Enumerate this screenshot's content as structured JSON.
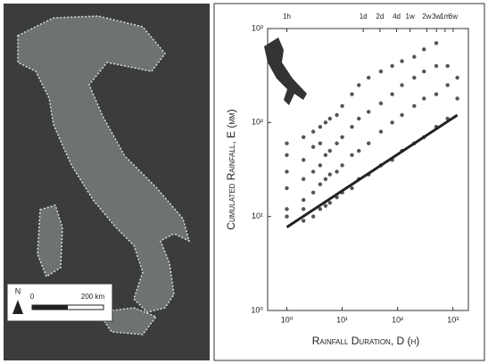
{
  "map": {
    "north": "N",
    "scale_labels": [
      "0",
      "200 km"
    ]
  },
  "chart_data": {
    "type": "scatter",
    "x_label": "Rainfall Duration, D (h)",
    "y_label": "Cumulated Rainfall, E (mm)",
    "xscale": "log",
    "yscale": "log",
    "xlim": [
      0.45,
      1900
    ],
    "ylim": [
      1,
      1000
    ],
    "xticks": [
      {
        "value": 1,
        "label": "10⁰"
      },
      {
        "value": 10,
        "label": "10¹"
      },
      {
        "value": 100,
        "label": "10²"
      },
      {
        "value": 1000,
        "label": "10³"
      }
    ],
    "yticks": [
      {
        "value": 1,
        "label": "10⁰"
      },
      {
        "value": 10,
        "label": "10¹"
      },
      {
        "value": 100,
        "label": "10²"
      },
      {
        "value": 1000,
        "label": "10³"
      }
    ],
    "x2ticks": [
      {
        "value": 1,
        "label": "1h"
      },
      {
        "value": 24,
        "label": "1d"
      },
      {
        "value": 48,
        "label": "2d"
      },
      {
        "value": 96,
        "label": "4d"
      },
      {
        "value": 168,
        "label": "1w"
      },
      {
        "value": 336,
        "label": "2w"
      },
      {
        "value": 504,
        "label": "3w"
      },
      {
        "value": 720,
        "label": "1m"
      },
      {
        "value": 1008,
        "label": "6w"
      }
    ],
    "series": [
      {
        "mode": "points",
        "color": "#555555",
        "x": [
          1,
          1,
          1,
          1,
          1,
          1,
          2,
          2,
          2,
          2,
          2,
          2,
          3,
          3,
          3,
          3,
          3,
          4,
          4,
          4,
          4,
          4,
          5,
          5,
          5,
          5,
          6,
          6,
          6,
          6,
          8,
          8,
          8,
          8,
          10,
          10,
          10,
          10,
          15,
          15,
          15,
          15,
          20,
          20,
          20,
          20,
          30,
          30,
          30,
          30,
          50,
          50,
          50,
          50,
          80,
          80,
          80,
          80,
          120,
          120,
          120,
          120,
          200,
          200,
          200,
          200,
          300,
          300,
          300,
          300,
          500,
          500,
          500,
          500,
          800,
          800,
          800,
          1200,
          1200
        ],
        "y": [
          12,
          20,
          30,
          45,
          60,
          10,
          9,
          15,
          25,
          40,
          70,
          12,
          10,
          18,
          30,
          55,
          80,
          12,
          22,
          35,
          60,
          90,
          13,
          25,
          45,
          100,
          14,
          28,
          50,
          110,
          16,
          30,
          60,
          120,
          18,
          35,
          70,
          150,
          20,
          45,
          90,
          200,
          25,
          50,
          110,
          250,
          28,
          60,
          130,
          300,
          35,
          80,
          160,
          350,
          40,
          100,
          200,
          400,
          50,
          120,
          250,
          450,
          60,
          150,
          300,
          500,
          70,
          180,
          350,
          600,
          90,
          200,
          400,
          700,
          110,
          250,
          400,
          180,
          300
        ]
      },
      {
        "mode": "line",
        "color": "#222222",
        "x": [
          1,
          1200
        ],
        "y": [
          7.7,
          120
        ]
      }
    ]
  }
}
